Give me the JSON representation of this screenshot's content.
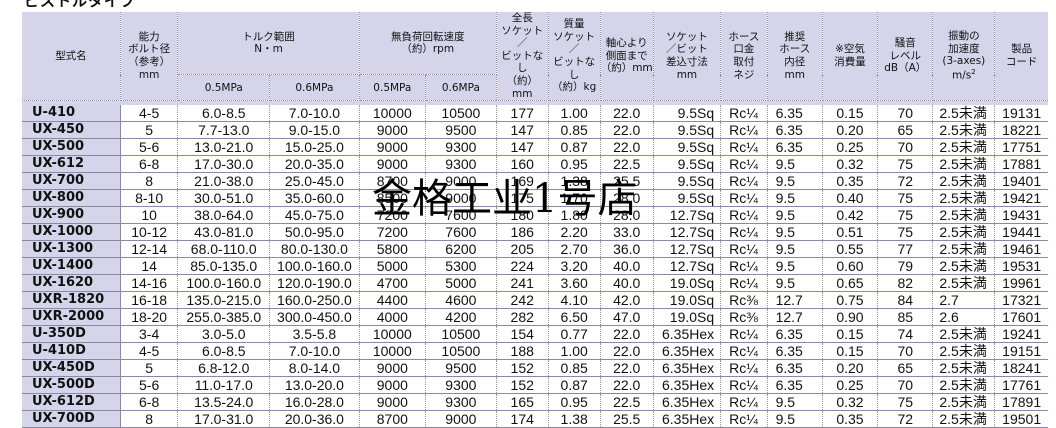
{
  "page": {
    "section_title": "ピストルタイプ"
  },
  "table": {
    "headers": {
      "model": "型式名",
      "bolt": [
        "能力",
        "ボルト径",
        "（参考）",
        "mm"
      ],
      "torque": "トルク範囲",
      "torque_unit": "N・m",
      "speed": "無負荷回転速度",
      "speed_unit": "（約）rpm",
      "length": [
        "全長",
        "ソケット／",
        "ビットなし",
        "（約）mm"
      ],
      "weight": [
        "質量",
        "ソケット／",
        "ビットなし",
        "（約）kg"
      ],
      "offset": [
        "軸心より",
        "側面まで",
        "（約）mm"
      ],
      "socket": [
        "ソケット",
        "／ビット",
        "差込寸法",
        "mm"
      ],
      "hose_fitting": [
        "ホース",
        "口金",
        "取付",
        "ネジ"
      ],
      "hose_inner": [
        "推奨",
        "ホース",
        "内径",
        "mm"
      ],
      "air": [
        "※空気",
        "消費量"
      ],
      "noise": [
        "騒音",
        "レベル",
        "dB（A）"
      ],
      "vibration": [
        "振動の",
        "加速度",
        "(3-axes)",
        "m/s",
        "2"
      ],
      "product_code": [
        "製品",
        "コード"
      ],
      "pressure_a": "0.5MPa",
      "pressure_b": "0.6MPa"
    },
    "rows": [
      {
        "model": "U-410",
        "bolt": "4-5",
        "torque_a": "6.0-8.5",
        "torque_b": "7.0-10.0",
        "speed_a": "10000",
        "speed_b": "10500",
        "length": "177",
        "weight": "1.00",
        "offset": "22.0",
        "socket": "9.5Sq",
        "hose": "Rc¼",
        "inner": "6.35",
        "air": "0.15",
        "noise": "70",
        "vib": "2.5未満",
        "code": "19131"
      },
      {
        "model": "UX-450",
        "bolt": "5",
        "torque_a": "7.7-13.0",
        "torque_b": "9.0-15.0",
        "speed_a": "9000",
        "speed_b": "9500",
        "length": "147",
        "weight": "0.85",
        "offset": "22.0",
        "socket": "9.5Sq",
        "hose": "Rc¼",
        "inner": "6.35",
        "air": "0.20",
        "noise": "65",
        "vib": "2.5未満",
        "code": "18221"
      },
      {
        "model": "UX-500",
        "bolt": "5-6",
        "torque_a": "13.0-21.0",
        "torque_b": "15.0-25.0",
        "speed_a": "9000",
        "speed_b": "9300",
        "length": "147",
        "weight": "0.87",
        "offset": "22.0",
        "socket": "9.5Sq",
        "hose": "Rc¼",
        "inner": "6.35",
        "air": "0.25",
        "noise": "70",
        "vib": "2.5未満",
        "code": "17751"
      },
      {
        "model": "UX-612",
        "bolt": "6-8",
        "torque_a": "17.0-30.0",
        "torque_b": "20.0-35.0",
        "speed_a": "9000",
        "speed_b": "9300",
        "length": "160",
        "weight": "0.95",
        "offset": "22.5",
        "socket": "9.5Sq",
        "hose": "Rc¼",
        "inner": "9.5",
        "air": "0.32",
        "noise": "75",
        "vib": "2.5未満",
        "code": "17881"
      },
      {
        "model": "UX-700",
        "bolt": "8",
        "torque_a": "21.0-38.0",
        "torque_b": "25.0-45.0",
        "speed_a": "8700",
        "speed_b": "9000",
        "length": "169",
        "weight": "1.38",
        "offset": "25.5",
        "socket": "9.5Sq",
        "hose": "Rc¼",
        "inner": "9.5",
        "air": "0.35",
        "noise": "72",
        "vib": "2.5未満",
        "code": "19401"
      },
      {
        "model": "UX-800",
        "bolt": "8-10",
        "torque_a": "30.0-51.0",
        "torque_b": "35.0-60.0",
        "speed_a": "8500",
        "speed_b": "9000",
        "length": "175",
        "weight": "1.70",
        "offset": "28.0",
        "socket": "9.5Sq",
        "hose": "Rc¼",
        "inner": "9.5",
        "air": "0.40",
        "noise": "75",
        "vib": "2.5未満",
        "code": "19421"
      },
      {
        "model": "UX-900",
        "bolt": "10",
        "torque_a": "38.0-64.0",
        "torque_b": "45.0-75.0",
        "speed_a": "7200",
        "speed_b": "7600",
        "length": "180",
        "weight": "1.80",
        "offset": "28.0",
        "socket": "12.7Sq",
        "hose": "Rc¼",
        "inner": "9.5",
        "air": "0.42",
        "noise": "75",
        "vib": "2.5未満",
        "code": "19431"
      },
      {
        "model": "UX-1000",
        "bolt": "10-12",
        "torque_a": "43.0-81.0",
        "torque_b": "50.0-95.0",
        "speed_a": "7200",
        "speed_b": "7600",
        "length": "186",
        "weight": "2.20",
        "offset": "33.0",
        "socket": "12.7Sq",
        "hose": "Rc¼",
        "inner": "9.5",
        "air": "0.51",
        "noise": "75",
        "vib": "2.5未満",
        "code": "19441"
      },
      {
        "model": "UX-1300",
        "bolt": "12-14",
        "torque_a": "68.0-110.0",
        "torque_b": "80.0-130.0",
        "speed_a": "5800",
        "speed_b": "6200",
        "length": "205",
        "weight": "2.70",
        "offset": "36.0",
        "socket": "12.7Sq",
        "hose": "Rc¼",
        "inner": "9.5",
        "air": "0.55",
        "noise": "77",
        "vib": "2.5未満",
        "code": "19461"
      },
      {
        "model": "UX-1400",
        "bolt": "14",
        "torque_a": "85.0-135.0",
        "torque_b": "100.0-160.0",
        "speed_a": "5000",
        "speed_b": "5300",
        "length": "224",
        "weight": "3.20",
        "offset": "40.0",
        "socket": "12.7Sq",
        "hose": "Rc¼",
        "inner": "9.5",
        "air": "0.60",
        "noise": "79",
        "vib": "2.5未満",
        "code": "19531"
      },
      {
        "model": "UX-1620",
        "bolt": "14-16",
        "torque_a": "100.0-160.0",
        "torque_b": "120.0-190.0",
        "speed_a": "4700",
        "speed_b": "5000",
        "length": "241",
        "weight": "3.60",
        "offset": "40.0",
        "socket": "19.0Sq",
        "hose": "Rc¼",
        "inner": "9.5",
        "air": "0.65",
        "noise": "82",
        "vib": "2.5未満",
        "code": "19961"
      },
      {
        "model": "UXR-1820",
        "bolt": "16-18",
        "torque_a": "135.0-215.0",
        "torque_b": "160.0-250.0",
        "speed_a": "4400",
        "speed_b": "4600",
        "length": "242",
        "weight": "4.10",
        "offset": "42.0",
        "socket": "19.0Sq",
        "hose": "Rc⅜",
        "inner": "12.7",
        "air": "0.75",
        "noise": "84",
        "vib": "2.7",
        "code": "17321"
      },
      {
        "model": "UXR-2000",
        "bolt": "18-20",
        "torque_a": "255.0-385.0",
        "torque_b": "300.0-450.0",
        "speed_a": "4000",
        "speed_b": "4200",
        "length": "282",
        "weight": "6.50",
        "offset": "47.0",
        "socket": "19.0Sq",
        "hose": "Rc⅜",
        "inner": "12.7",
        "air": "0.90",
        "noise": "85",
        "vib": "2.6",
        "code": "17601"
      },
      {
        "model": "U-350D",
        "bolt": "3-4",
        "torque_a": "3.0-5.0",
        "torque_b": "3.5-5.8",
        "speed_a": "10000",
        "speed_b": "10500",
        "length": "154",
        "weight": "0.77",
        "offset": "22.0",
        "socket": "6.35Hex",
        "hose": "Rc¼",
        "inner": "6.35",
        "air": "0.15",
        "noise": "74",
        "vib": "2.5未満",
        "code": "19241"
      },
      {
        "model": "U-410D",
        "bolt": "4-5",
        "torque_a": "6.0-8.5",
        "torque_b": "7.0-10.0",
        "speed_a": "10000",
        "speed_b": "10500",
        "length": "188",
        "weight": "1.00",
        "offset": "22.0",
        "socket": "6.35Hex",
        "hose": "Rc¼",
        "inner": "6.35",
        "air": "0.15",
        "noise": "70",
        "vib": "2.5未満",
        "code": "19151"
      },
      {
        "model": "UX-450D",
        "bolt": "5",
        "torque_a": "6.8-12.0",
        "torque_b": "8.0-14.0",
        "speed_a": "9000",
        "speed_b": "9500",
        "length": "152",
        "weight": "0.85",
        "offset": "22.0",
        "socket": "6.35Hex",
        "hose": "Rc¼",
        "inner": "6.35",
        "air": "0.20",
        "noise": "65",
        "vib": "2.5未満",
        "code": "18241"
      },
      {
        "model": "UX-500D",
        "bolt": "5-6",
        "torque_a": "11.0-17.0",
        "torque_b": "13.0-20.0",
        "speed_a": "9000",
        "speed_b": "9300",
        "length": "152",
        "weight": "0.87",
        "offset": "22.0",
        "socket": "6.35Hex",
        "hose": "Rc¼",
        "inner": "6.35",
        "air": "0.25",
        "noise": "70",
        "vib": "2.5未満",
        "code": "17761"
      },
      {
        "model": "UX-612D",
        "bolt": "6-8",
        "torque_a": "13.5-24.0",
        "torque_b": "16.0-28.0",
        "speed_a": "9000",
        "speed_b": "9300",
        "length": "165",
        "weight": "0.95",
        "offset": "22.5",
        "socket": "6.35Hex",
        "hose": "Rc¼",
        "inner": "9.5",
        "air": "0.32",
        "noise": "75",
        "vib": "2.5未満",
        "code": "17891"
      },
      {
        "model": "UX-700D",
        "bolt": "8",
        "torque_a": "17.0-31.0",
        "torque_b": "20.0-36.0",
        "speed_a": "8700",
        "speed_b": "9000",
        "length": "174",
        "weight": "1.38",
        "offset": "25.5",
        "socket": "6.35Hex",
        "hose": "Rc¼",
        "inner": "9.5",
        "air": "0.35",
        "noise": "72",
        "vib": "2.5未満",
        "code": "19501"
      }
    ]
  },
  "watermark": {
    "text": "金格工业1号店"
  }
}
